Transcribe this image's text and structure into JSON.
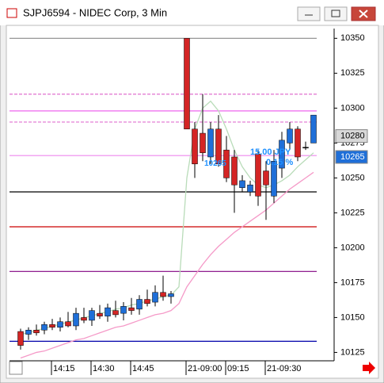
{
  "window": {
    "title": "SJPJ6594 - NIDEC Corp, 3 Min"
  },
  "chart_data": {
    "type": "candlestick",
    "categories": [
      null,
      null,
      null,
      null,
      "14:15",
      null,
      null,
      null,
      null,
      "14:30",
      null,
      null,
      null,
      null,
      "14:45",
      null,
      null,
      null,
      null,
      null,
      null,
      "21-09:00",
      null,
      null,
      null,
      null,
      "09:15",
      null,
      null,
      null,
      null,
      "21-09:30",
      null,
      null,
      null,
      null,
      null,
      null
    ],
    "open": [
      10140,
      10138,
      10141,
      10141,
      10145,
      10143,
      10147,
      10144,
      10150,
      10148,
      10153,
      10151,
      10155,
      10153,
      10157,
      10156,
      10163,
      10161,
      10168,
      10165,
      null,
      10350,
      10285,
      10282,
      10265,
      10285,
      10270,
      10265,
      10243,
      10240,
      10267,
      10255,
      10237,
      10257,
      10275,
      10285,
      10272,
      10275
    ],
    "high": [
      10142,
      10143,
      10145,
      10147,
      10149,
      10150,
      10154,
      10157,
      10157,
      10157,
      10159,
      10160,
      10162,
      10161,
      10164,
      10166,
      10170,
      10173,
      10180,
      10169,
      null,
      10350,
      10290,
      10310,
      10290,
      10295,
      10280,
      10270,
      10252,
      10248,
      10270,
      10262,
      10270,
      10283,
      10290,
      10287,
      10276,
      10295
    ],
    "low": [
      10127,
      10134,
      10137,
      10138,
      10141,
      10140,
      10143,
      10141,
      10146,
      10144,
      10149,
      10147,
      10150,
      10148,
      10152,
      10152,
      10158,
      10158,
      10162,
      10160,
      null,
      10285,
      10250,
      10262,
      10260,
      10258,
      10247,
      10225,
      10240,
      10237,
      10230,
      10220,
      10232,
      10250,
      10270,
      10262,
      10270,
      10275
    ],
    "close": [
      10130,
      10141,
      10139,
      10145,
      10143,
      10147,
      10144,
      10153,
      10148,
      10155,
      10151,
      10157,
      10152,
      10158,
      10155,
      10163,
      10160,
      10168,
      10165,
      10167,
      null,
      10285,
      10260,
      10268,
      10285,
      10260,
      10250,
      10245,
      10248,
      10245,
      10237,
      10245,
      10262,
      10277,
      10285,
      10265,
      10272,
      10295
    ],
    "up_color": "#1f6fd8",
    "down_color": "#d42525",
    "series": [
      {
        "color": "#b9dcb9",
        "values": [
          10138,
          10139,
          10141,
          10142,
          10144,
          10145,
          10147,
          10148,
          10150,
          10151,
          10153,
          10154,
          10156,
          10157,
          10159,
          10160,
          10162,
          10163,
          10165,
          10166,
          10172,
          10250,
          10285,
          10300,
          10305,
          10298,
          10285,
          10270,
          10258,
          10250,
          10245,
          10243,
          10245,
          10248,
          10252,
          10258,
          10263,
          10268
        ]
      },
      {
        "color": "#f59ac8",
        "values": [
          10121,
          10123,
          10125,
          10126,
          10128,
          10130,
          10132,
          10134,
          10135,
          10137,
          10139,
          10141,
          10143,
          10144,
          10146,
          10148,
          10150,
          10152,
          10153,
          10155,
          10160,
          10172,
          10180,
          10188,
          10195,
          10201,
          10206,
          10211,
          10215,
          10219,
          10223,
          10227,
          10232,
          10237,
          10242,
          10246,
          10250,
          10254
        ]
      }
    ],
    "levels": [
      {
        "value": 10350,
        "color": "#8a8a8a",
        "dashed": false
      },
      {
        "value": 10310,
        "color": "#e070d0",
        "dashed": true
      },
      {
        "value": 10298,
        "color": "#ee66ee",
        "dashed": false
      },
      {
        "value": 10290,
        "color": "#e070d0",
        "dashed": true
      },
      {
        "value": 10266,
        "color": "#ee88ee",
        "dashed": false
      },
      {
        "value": 10240,
        "color": "#000000",
        "dashed": false
      },
      {
        "value": 10215,
        "color": "#cc0000",
        "dashed": false
      },
      {
        "value": 10183,
        "color": "#800080",
        "dashed": false
      },
      {
        "value": 10133,
        "color": "#0000aa",
        "dashed": false
      }
    ],
    "price_tags": [
      10280,
      10265
    ],
    "annotations": [
      "15.00 JPY",
      "0.15 %",
      "10265"
    ],
    "ylim": [
      10119,
      10357
    ],
    "yticks": [
      10125,
      10150,
      10175,
      10200,
      10225,
      10250,
      10275,
      10300,
      10325,
      10350
    ]
  }
}
